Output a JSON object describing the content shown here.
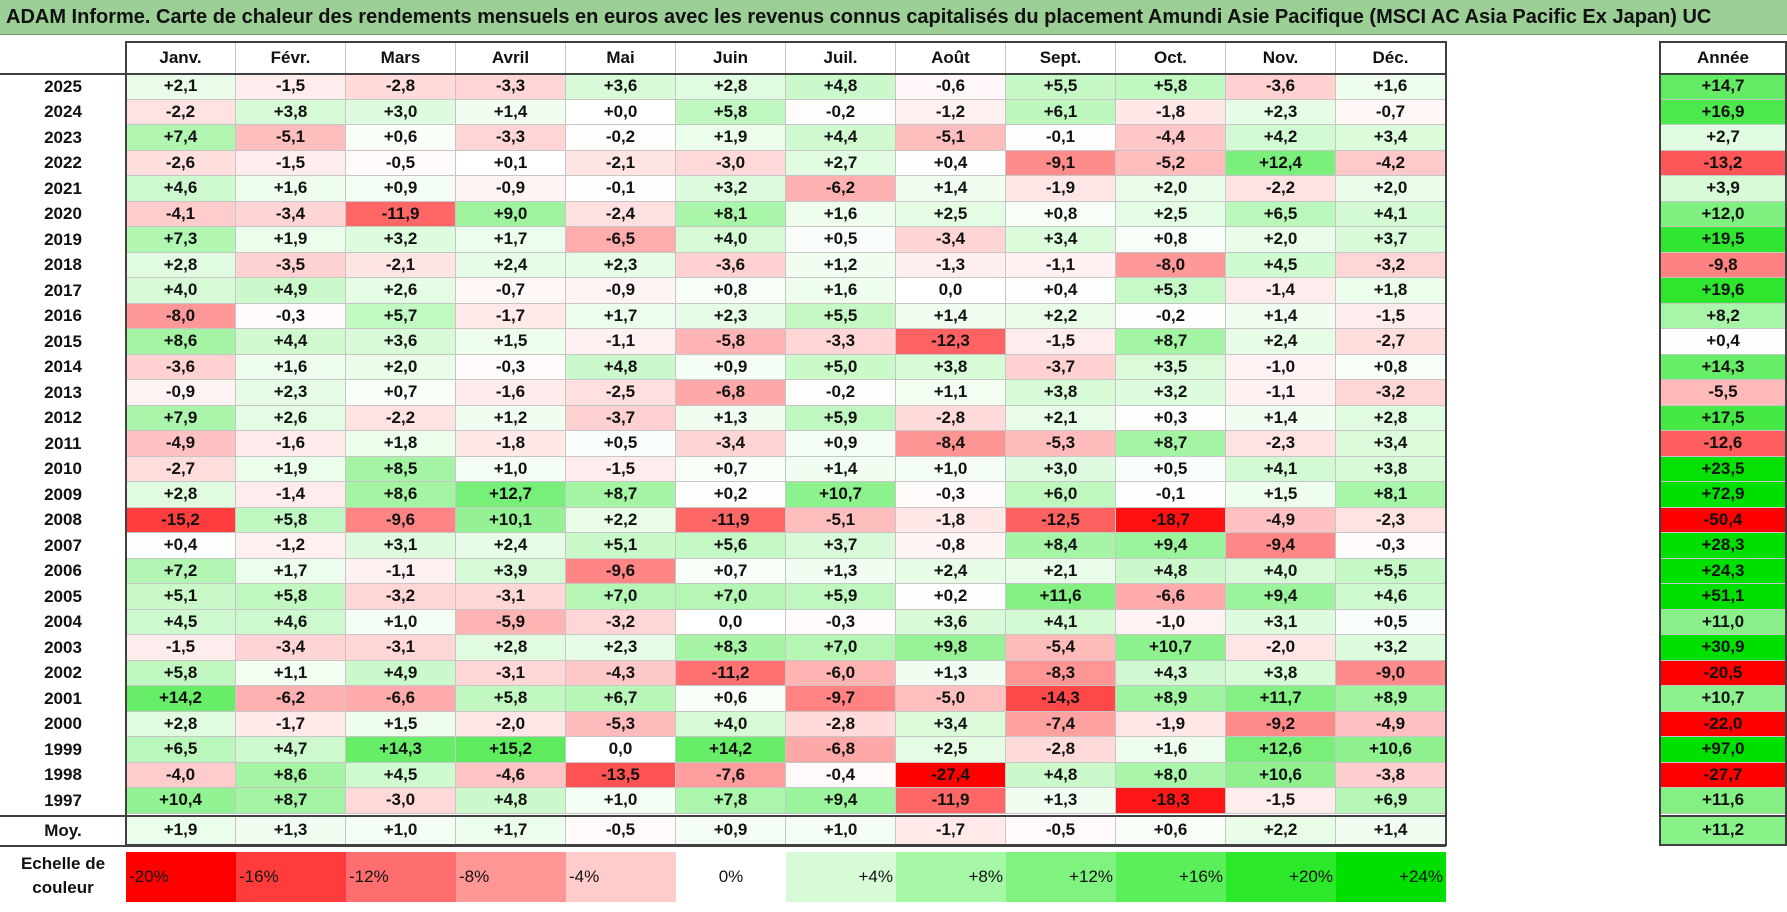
{
  "title": "ADAM Informe. Carte de chaleur des rendements mensuels en euros avec les revenus connus capitalisés du placement Amundi Asie Pacifique (MSCI AC Asia Pacific Ex Japan) UC",
  "chart_data": {
    "type": "heatmap",
    "title": "ADAM Informe. Carte de chaleur des rendements mensuels en euros avec les revenus connus capitalisés du placement Amundi Asie Pacifique (MSCI AC Asia Pacific Ex Japan) UC",
    "columns": [
      "Janv.",
      "Févr.",
      "Mars",
      "Avril",
      "Mai",
      "Juin",
      "Juil.",
      "Août",
      "Sept.",
      "Oct.",
      "Nov.",
      "Déc."
    ],
    "year_column": "Année",
    "rows": [
      {
        "year": "2025",
        "values": [
          "+2,1",
          "-1,5",
          "-2,8",
          "-3,3",
          "+3,6",
          "+2,8",
          "+4,8",
          "-0,6",
          "+5,5",
          "+5,8",
          "-3,6",
          "+1,6"
        ],
        "annual": "+14,7"
      },
      {
        "year": "2024",
        "values": [
          "-2,2",
          "+3,8",
          "+3,0",
          "+1,4",
          "+0,0",
          "+5,8",
          "-0,2",
          "-1,2",
          "+6,1",
          "-1,8",
          "+2,3",
          "-0,7"
        ],
        "annual": "+16,9"
      },
      {
        "year": "2023",
        "values": [
          "+7,4",
          "-5,1",
          "+0,6",
          "-3,3",
          "-0,2",
          "+1,9",
          "+4,4",
          "-5,1",
          "-0,1",
          "-4,4",
          "+4,2",
          "+3,4"
        ],
        "annual": "+2,7"
      },
      {
        "year": "2022",
        "values": [
          "-2,6",
          "-1,5",
          "-0,5",
          "+0,1",
          "-2,1",
          "-3,0",
          "+2,7",
          "+0,4",
          "-9,1",
          "-5,2",
          "+12,4",
          "-4,2"
        ],
        "annual": "-13,2"
      },
      {
        "year": "2021",
        "values": [
          "+4,6",
          "+1,6",
          "+0,9",
          "-0,9",
          "-0,1",
          "+3,2",
          "-6,2",
          "+1,4",
          "-1,9",
          "+2,0",
          "-2,2",
          "+2,0"
        ],
        "annual": "+3,9"
      },
      {
        "year": "2020",
        "values": [
          "-4,1",
          "-3,4",
          "-11,9",
          "+9,0",
          "-2,4",
          "+8,1",
          "+1,6",
          "+2,5",
          "+0,8",
          "+2,5",
          "+6,5",
          "+4,1"
        ],
        "annual": "+12,0"
      },
      {
        "year": "2019",
        "values": [
          "+7,3",
          "+1,9",
          "+3,2",
          "+1,7",
          "-6,5",
          "+4,0",
          "+0,5",
          "-3,4",
          "+3,4",
          "+0,8",
          "+2,0",
          "+3,7"
        ],
        "annual": "+19,5"
      },
      {
        "year": "2018",
        "values": [
          "+2,8",
          "-3,5",
          "-2,1",
          "+2,4",
          "+2,3",
          "-3,6",
          "+1,2",
          "-1,3",
          "-1,1",
          "-8,0",
          "+4,5",
          "-3,2"
        ],
        "annual": "-9,8"
      },
      {
        "year": "2017",
        "values": [
          "+4,0",
          "+4,9",
          "+2,6",
          "-0,7",
          "-0,9",
          "+0,8",
          "+1,6",
          "0,0",
          "+0,4",
          "+5,3",
          "-1,4",
          "+1,8"
        ],
        "annual": "+19,6"
      },
      {
        "year": "2016",
        "values": [
          "-8,0",
          "-0,3",
          "+5,7",
          "-1,7",
          "+1,7",
          "+2,3",
          "+5,5",
          "+1,4",
          "+2,2",
          "-0,2",
          "+1,4",
          "-1,5"
        ],
        "annual": "+8,2"
      },
      {
        "year": "2015",
        "values": [
          "+8,6",
          "+4,4",
          "+3,6",
          "+1,5",
          "-1,1",
          "-5,8",
          "-3,3",
          "-12,3",
          "-1,5",
          "+8,7",
          "+2,4",
          "-2,7"
        ],
        "annual": "+0,4"
      },
      {
        "year": "2014",
        "values": [
          "-3,6",
          "+1,6",
          "+2,0",
          "-0,3",
          "+4,8",
          "+0,9",
          "+5,0",
          "+3,8",
          "-3,7",
          "+3,5",
          "-1,0",
          "+0,8"
        ],
        "annual": "+14,3"
      },
      {
        "year": "2013",
        "values": [
          "-0,9",
          "+2,3",
          "+0,7",
          "-1,6",
          "-2,5",
          "-6,8",
          "-0,2",
          "+1,1",
          "+3,8",
          "+3,2",
          "-1,1",
          "-3,2"
        ],
        "annual": "-5,5"
      },
      {
        "year": "2012",
        "values": [
          "+7,9",
          "+2,6",
          "-2,2",
          "+1,2",
          "-3,7",
          "+1,3",
          "+5,9",
          "-2,8",
          "+2,1",
          "+0,3",
          "+1,4",
          "+2,8"
        ],
        "annual": "+17,5"
      },
      {
        "year": "2011",
        "values": [
          "-4,9",
          "-1,6",
          "+1,8",
          "-1,8",
          "+0,5",
          "-3,4",
          "+0,9",
          "-8,4",
          "-5,3",
          "+8,7",
          "-2,3",
          "+3,4"
        ],
        "annual": "-12,6"
      },
      {
        "year": "2010",
        "values": [
          "-2,7",
          "+1,9",
          "+8,5",
          "+1,0",
          "-1,5",
          "+0,7",
          "+1,4",
          "+1,0",
          "+3,0",
          "+0,5",
          "+4,1",
          "+3,8"
        ],
        "annual": "+23,5"
      },
      {
        "year": "2009",
        "values": [
          "+2,8",
          "-1,4",
          "+8,6",
          "+12,7",
          "+8,7",
          "+0,2",
          "+10,7",
          "-0,3",
          "+6,0",
          "-0,1",
          "+1,5",
          "+8,1"
        ],
        "annual": "+72,9"
      },
      {
        "year": "2008",
        "values": [
          "-15,2",
          "+5,8",
          "-9,6",
          "+10,1",
          "+2,2",
          "-11,9",
          "-5,1",
          "-1,8",
          "-12,5",
          "-18,7",
          "-4,9",
          "-2,3"
        ],
        "annual": "-50,4"
      },
      {
        "year": "2007",
        "values": [
          "+0,4",
          "-1,2",
          "+3,1",
          "+2,4",
          "+5,1",
          "+5,6",
          "+3,7",
          "-0,8",
          "+8,4",
          "+9,4",
          "-9,4",
          "-0,3"
        ],
        "annual": "+28,3"
      },
      {
        "year": "2006",
        "values": [
          "+7,2",
          "+1,7",
          "-1,1",
          "+3,9",
          "-9,6",
          "+0,7",
          "+1,3",
          "+2,4",
          "+2,1",
          "+4,8",
          "+4,0",
          "+5,5"
        ],
        "annual": "+24,3"
      },
      {
        "year": "2005",
        "values": [
          "+5,1",
          "+5,8",
          "-3,2",
          "-3,1",
          "+7,0",
          "+7,0",
          "+5,9",
          "+0,2",
          "+11,6",
          "-6,6",
          "+9,4",
          "+4,6"
        ],
        "annual": "+51,1"
      },
      {
        "year": "2004",
        "values": [
          "+4,5",
          "+4,6",
          "+1,0",
          "-5,9",
          "-3,2",
          "0,0",
          "-0,3",
          "+3,6",
          "+4,1",
          "-1,0",
          "+3,1",
          "+0,5"
        ],
        "annual": "+11,0"
      },
      {
        "year": "2003",
        "values": [
          "-1,5",
          "-3,4",
          "-3,1",
          "+2,8",
          "+2,3",
          "+8,3",
          "+7,0",
          "+9,8",
          "-5,4",
          "+10,7",
          "-2,0",
          "+3,2"
        ],
        "annual": "+30,9"
      },
      {
        "year": "2002",
        "values": [
          "+5,8",
          "+1,1",
          "+4,9",
          "-3,1",
          "-4,3",
          "-11,2",
          "-6,0",
          "+1,3",
          "-8,3",
          "+4,3",
          "+3,8",
          "-9,0"
        ],
        "annual": "-20,5"
      },
      {
        "year": "2001",
        "values": [
          "+14,2",
          "-6,2",
          "-6,6",
          "+5,8",
          "+6,7",
          "+0,6",
          "-9,7",
          "-5,0",
          "-14,3",
          "+8,9",
          "+11,7",
          "+8,9"
        ],
        "annual": "+10,7"
      },
      {
        "year": "2000",
        "values": [
          "+2,8",
          "-1,7",
          "+1,5",
          "-2,0",
          "-5,3",
          "+4,0",
          "-2,8",
          "+3,4",
          "-7,4",
          "-1,9",
          "-9,2",
          "-4,9"
        ],
        "annual": "-22,0"
      },
      {
        "year": "1999",
        "values": [
          "+6,5",
          "+4,7",
          "+14,3",
          "+15,2",
          "0,0",
          "+14,2",
          "-6,8",
          "+2,5",
          "-2,8",
          "+1,6",
          "+12,6",
          "+10,6"
        ],
        "annual": "+97,0"
      },
      {
        "year": "1998",
        "values": [
          "-4,0",
          "+8,6",
          "+4,5",
          "-4,6",
          "-13,5",
          "-7,6",
          "-0,4",
          "-27,4",
          "+4,8",
          "+8,0",
          "+10,6",
          "-3,8"
        ],
        "annual": "-27,7"
      },
      {
        "year": "1997",
        "values": [
          "+10,4",
          "+8,7",
          "-3,0",
          "+4,8",
          "+1,0",
          "+7,8",
          "+9,4",
          "-11,9",
          "+1,3",
          "-18,3",
          "-1,5",
          "+6,9"
        ],
        "annual": "+11,6"
      }
    ],
    "average": {
      "label": "Moy.",
      "values": [
        "+1,9",
        "+1,3",
        "+1,0",
        "+1,7",
        "-0,5",
        "+0,9",
        "+1,0",
        "-1,7",
        "-0,5",
        "+0,6",
        "+2,2",
        "+1,4"
      ],
      "annual": "+11,2"
    },
    "scale": {
      "label": "Echelle de\ncouleur",
      "steps": [
        {
          "label": "-20%",
          "value": -20,
          "color": "#ff0000"
        },
        {
          "label": "-16%",
          "value": -16,
          "color": "#ff3b3b"
        },
        {
          "label": "-12%",
          "value": -12,
          "color": "#ff6e6e"
        },
        {
          "label": "-8%",
          "value": -8,
          "color": "#ff9696"
        },
        {
          "label": "-4%",
          "value": -4,
          "color": "#ffcccc"
        },
        {
          "label": "0%",
          "value": 0,
          "color": "#ffffff"
        },
        {
          "label": "+4%",
          "value": 4,
          "color": "#d6fbd6"
        },
        {
          "label": "+8%",
          "value": 8,
          "color": "#a6f7a6"
        },
        {
          "label": "+12%",
          "value": 12,
          "color": "#7ff27f"
        },
        {
          "label": "+16%",
          "value": 16,
          "color": "#5bef5b"
        },
        {
          "label": "+20%",
          "value": 20,
          "color": "#2be82b"
        },
        {
          "label": "+24%",
          "value": 24,
          "color": "#00e000"
        }
      ]
    }
  }
}
